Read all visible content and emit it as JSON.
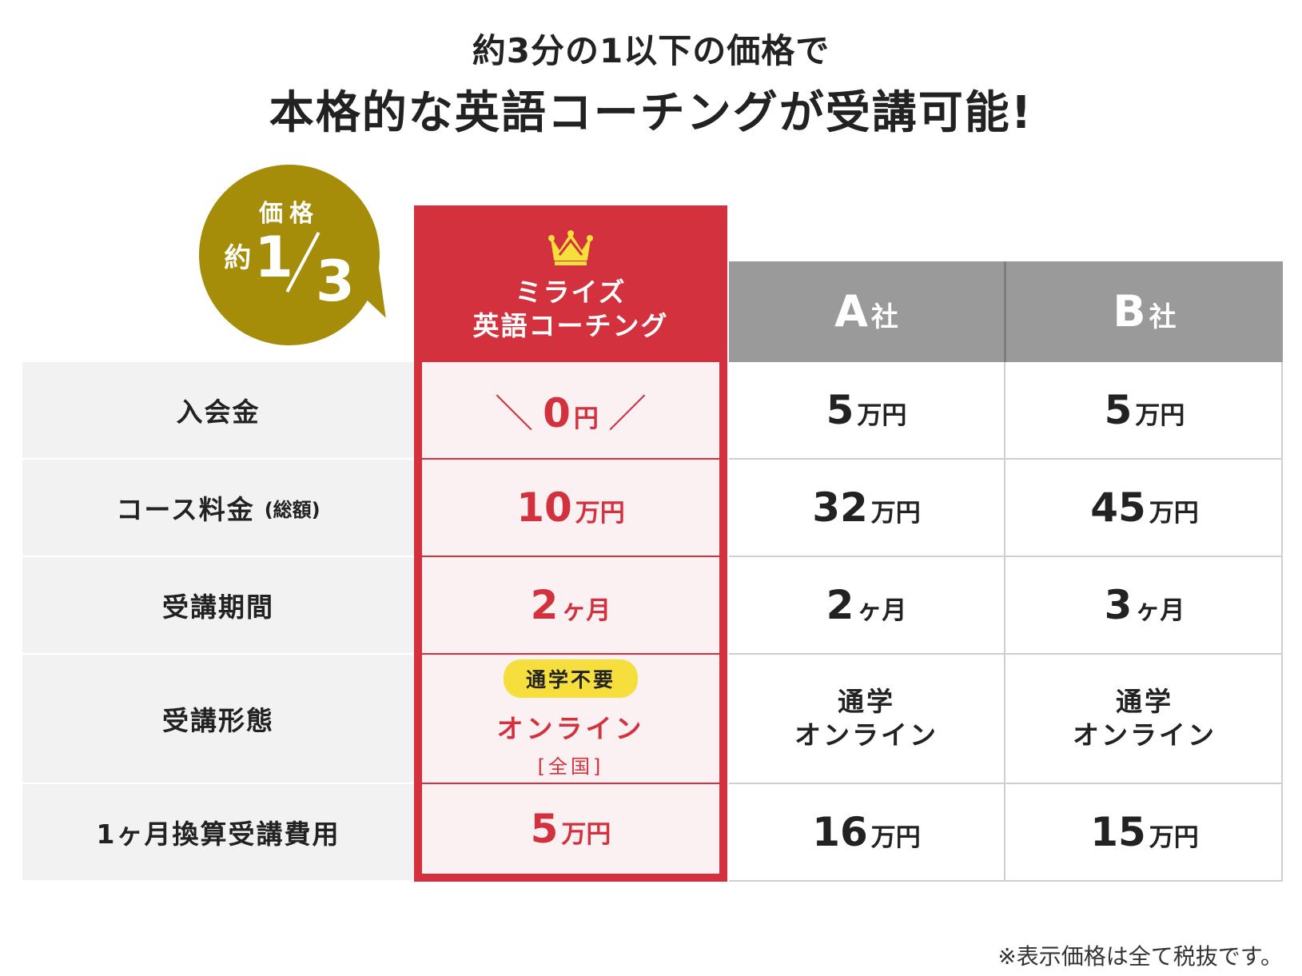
{
  "headline": {
    "sub": "約3分の1以下の価格で",
    "main": "本格的な英語コーチングが受講可能!"
  },
  "badge": {
    "label": "価格",
    "prefix": "約",
    "numerator": "1",
    "denominator": "3"
  },
  "columns": {
    "featured": {
      "line1": "ミライズ",
      "line2": "英語コーチング",
      "icon": "crown-icon"
    },
    "a": {
      "letter": "A",
      "suffix": "社"
    },
    "b": {
      "letter": "B",
      "suffix": "社"
    }
  },
  "rows": [
    {
      "label": "入会金",
      "label_note": "",
      "featured": {
        "num": "0",
        "unit": "円",
        "deco_left": "＼",
        "deco_right": "／"
      },
      "a": {
        "num": "5",
        "unit": "万円"
      },
      "b": {
        "num": "5",
        "unit": "万円"
      }
    },
    {
      "label": "コース料金",
      "label_note": "(総額)",
      "featured": {
        "num": "10",
        "unit": "万円"
      },
      "a": {
        "num": "32",
        "unit": "万円"
      },
      "b": {
        "num": "45",
        "unit": "万円"
      }
    },
    {
      "label": "受講期間",
      "label_note": "",
      "featured": {
        "num": "2",
        "unit": "ヶ月"
      },
      "a": {
        "num": "2",
        "unit": "ヶ月"
      },
      "b": {
        "num": "3",
        "unit": "ヶ月"
      }
    },
    {
      "label": "受講形態",
      "label_note": "",
      "featured": {
        "pill": "通学不要",
        "main": "オンライン",
        "sub": "[全国]"
      },
      "a": {
        "line1": "通学",
        "line2": "オンライン"
      },
      "b": {
        "line1": "通学",
        "line2": "オンライン"
      }
    },
    {
      "label": "1ヶ月換算受講費用",
      "label_note": "",
      "featured": {
        "num": "5",
        "unit": "万円"
      },
      "a": {
        "num": "16",
        "unit": "万円"
      },
      "b": {
        "num": "15",
        "unit": "万円"
      }
    }
  ],
  "footnote": "※表示価格は全て税抜です。",
  "colors": {
    "accent": "#d3313e",
    "gold": "#a68d09",
    "header_grey": "#9a9a9a",
    "pill": "#f6de3c"
  }
}
